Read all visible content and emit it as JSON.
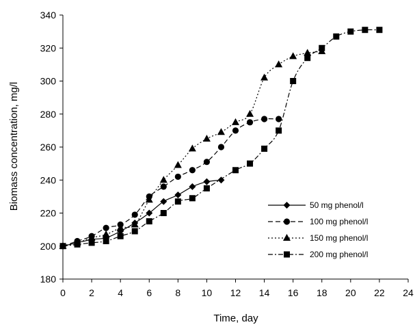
{
  "chart_data": {
    "type": "line",
    "title": "",
    "xlabel": "Time, day",
    "ylabel": "Biomass concentration, mg/l",
    "xlim": [
      0,
      24
    ],
    "ylim": [
      180,
      340
    ],
    "x_ticks": [
      0,
      2,
      4,
      6,
      8,
      10,
      12,
      14,
      16,
      18,
      20,
      22,
      24
    ],
    "y_ticks": [
      180,
      200,
      220,
      240,
      260,
      280,
      300,
      320,
      340
    ],
    "grid": false,
    "legend_position": "right",
    "series": [
      {
        "name": "50 mg phenol/l",
        "marker": "diamond",
        "dash": "solid",
        "x": [
          0,
          1,
          2,
          3,
          4,
          5,
          6,
          7,
          8,
          9,
          10,
          11
        ],
        "y": [
          200,
          202,
          204,
          205,
          209,
          214,
          220,
          227,
          231,
          236,
          239,
          240
        ]
      },
      {
        "name": "100 mg phenol/l",
        "marker": "circle",
        "dash": "dashed",
        "x": [
          0,
          1,
          2,
          3,
          4,
          5,
          6,
          7,
          8,
          9,
          10,
          11,
          12,
          13,
          14,
          15
        ],
        "y": [
          200,
          203,
          206,
          211,
          213,
          219,
          230,
          236,
          242,
          246,
          251,
          260,
          270,
          275,
          277,
          277
        ]
      },
      {
        "name": "150 mg phenol/l",
        "marker": "triangle",
        "dash": "dotted",
        "x": [
          0,
          1,
          2,
          3,
          4,
          5,
          6,
          7,
          8,
          9,
          10,
          11,
          12,
          13,
          14,
          15,
          16,
          17,
          18
        ],
        "y": [
          200,
          202,
          205,
          207,
          211,
          213,
          228,
          240,
          249,
          259,
          265,
          269,
          275,
          280,
          302,
          310,
          315,
          317,
          318
        ]
      },
      {
        "name": "200 mg phenol/l",
        "marker": "square",
        "dash": "dashdot",
        "x": [
          0,
          1,
          2,
          3,
          4,
          5,
          6,
          7,
          8,
          9,
          10,
          12,
          13,
          14,
          15,
          16,
          17,
          18,
          19,
          20,
          21,
          22
        ],
        "y": [
          200,
          201,
          202,
          203,
          206,
          209,
          215,
          220,
          227,
          229,
          235,
          246,
          250,
          259,
          270,
          300,
          314,
          320,
          327,
          330,
          331,
          331
        ]
      }
    ]
  }
}
